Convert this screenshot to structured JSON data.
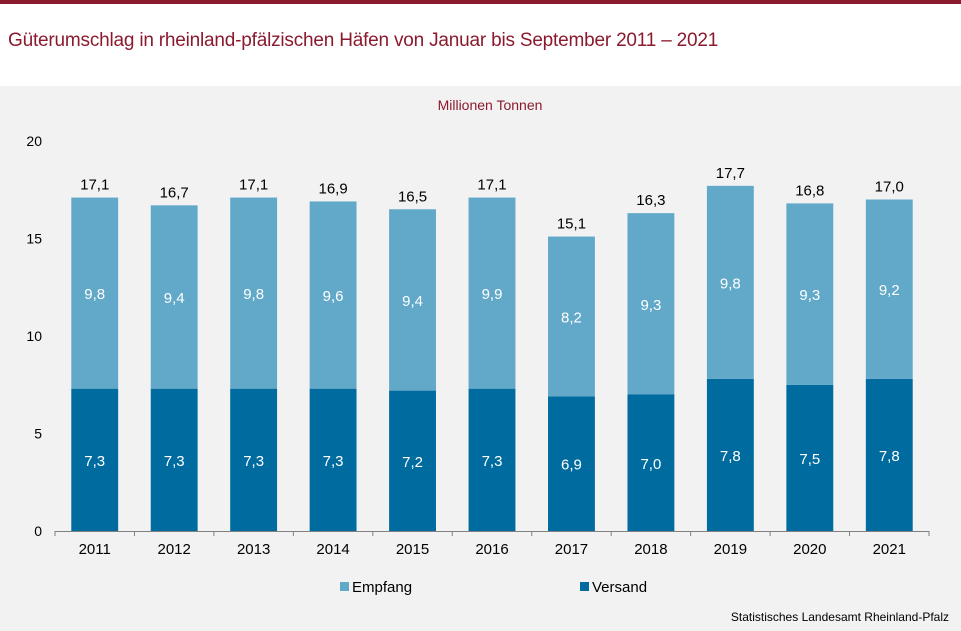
{
  "title": "Güterumschlag in rheinland-pfälzischen Häfen von Januar bis September 2011 – 2021",
  "source": "Statistisches Landesamt Rheinland-Pfalz",
  "colors": {
    "empfang": "#62a9c9",
    "versand": "#006b9e",
    "brand": "#8b1a2e"
  },
  "chart_data": {
    "type": "bar",
    "stacked": true,
    "unit_label": "Millionen Tonnen",
    "categories": [
      "2011",
      "2012",
      "2013",
      "2014",
      "2015",
      "2016",
      "2017",
      "2018",
      "2019",
      "2020",
      "2021"
    ],
    "series": [
      {
        "name": "Versand",
        "values": [
          7.3,
          7.3,
          7.3,
          7.3,
          7.2,
          7.3,
          6.9,
          7.0,
          7.8,
          7.5,
          7.8
        ],
        "labels": [
          "7,3",
          "7,3",
          "7,3",
          "7,3",
          "7,2",
          "7,3",
          "6,9",
          "7,0",
          "7,8",
          "7,5",
          "7,8"
        ]
      },
      {
        "name": "Empfang",
        "values": [
          9.8,
          9.4,
          9.8,
          9.6,
          9.4,
          9.9,
          8.2,
          9.3,
          9.8,
          9.3,
          9.2
        ],
        "labels": [
          "9,8",
          "9,4",
          "9,8",
          "9,6",
          "9,4",
          "9,9",
          "8,2",
          "9,3",
          "9,8",
          "9,3",
          "9,2"
        ]
      }
    ],
    "totals": [
      17.1,
      16.7,
      17.1,
      16.9,
      16.5,
      17.1,
      15.1,
      16.3,
      17.7,
      16.8,
      17.0
    ],
    "total_labels": [
      "17,1",
      "16,7",
      "17,1",
      "16,9",
      "16,5",
      "17,1",
      "15,1",
      "16,3",
      "17,7",
      "16,8",
      "17,0"
    ],
    "y_ticks": [
      "0",
      "5",
      "10",
      "15",
      "20"
    ],
    "ylim": [
      0,
      20
    ],
    "legend": [
      "Empfang",
      "Versand"
    ],
    "legend_position": "bottom",
    "grid": false
  }
}
